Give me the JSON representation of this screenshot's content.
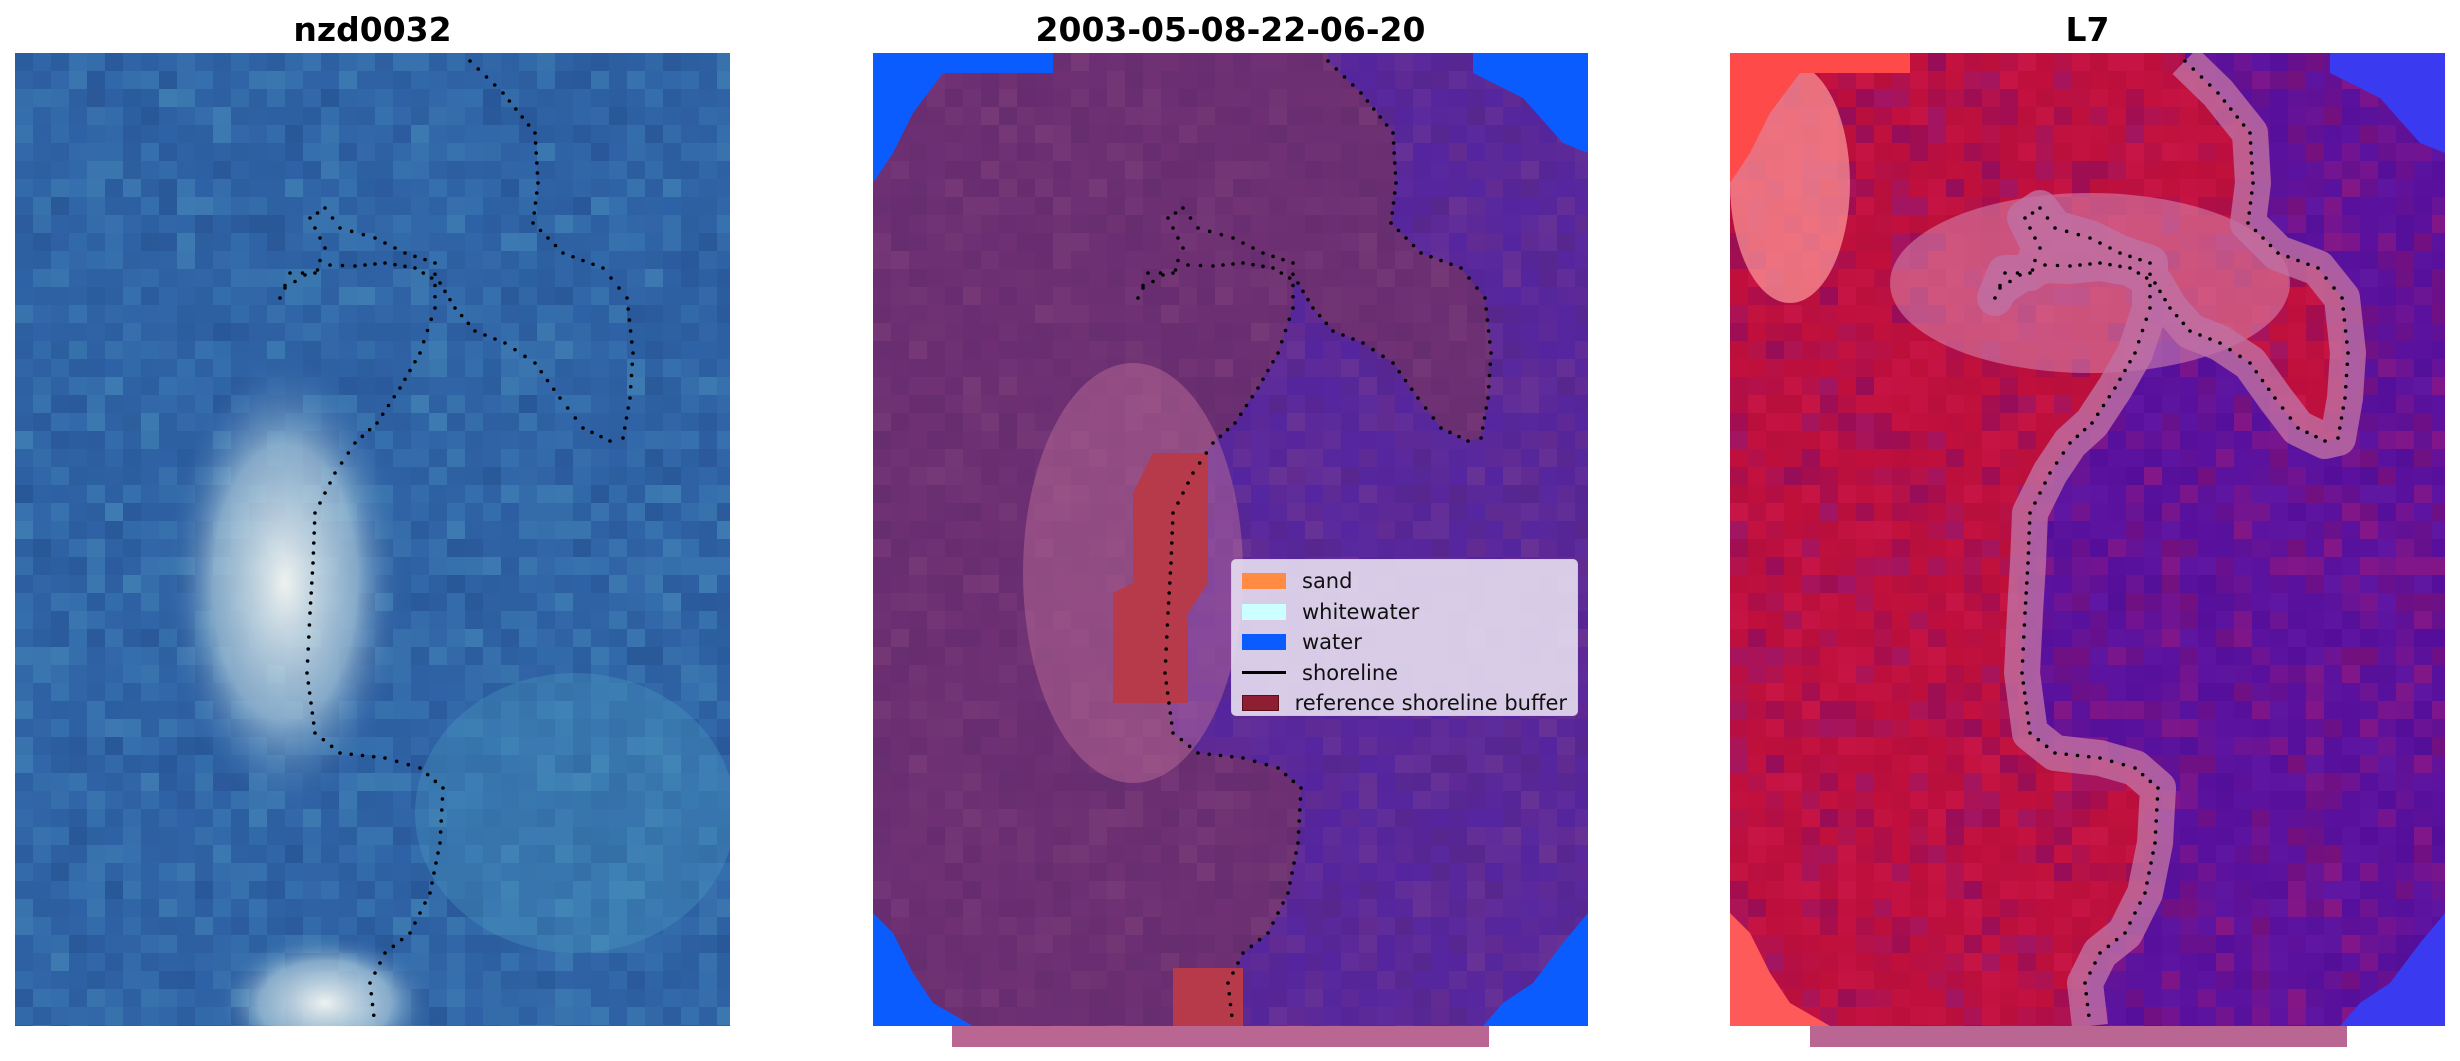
{
  "panels": [
    {
      "id": "rgb",
      "title": "nzd0032",
      "palette": "rgb"
    },
    {
      "id": "classified",
      "title": "2003-05-08-22-06-20",
      "palette": "classified"
    },
    {
      "id": "index",
      "title": "L7",
      "palette": "index"
    }
  ],
  "legend": {
    "items": [
      {
        "label": "sand",
        "color": "#ff8c42",
        "kind": "patch"
      },
      {
        "label": "whitewater",
        "color": "#ccffff",
        "kind": "patch"
      },
      {
        "label": "water",
        "color": "#0a5cff",
        "kind": "patch"
      },
      {
        "label": "shoreline",
        "color": "#000000",
        "kind": "line"
      },
      {
        "label": "reference shoreline buffer",
        "color": "#8e1f33",
        "kind": "patch"
      }
    ]
  },
  "colors": {
    "rgb_water": "#2f63a6",
    "rgb_bright": "#eef2f0",
    "class_land": "#6b2f72",
    "class_water": "#5526a0",
    "class_corner": "#0a5cff",
    "class_buffer": "#b63a4a",
    "index_red": "#c0103c",
    "index_purple": "#5a129e",
    "shoreline_dots": "#000000"
  }
}
